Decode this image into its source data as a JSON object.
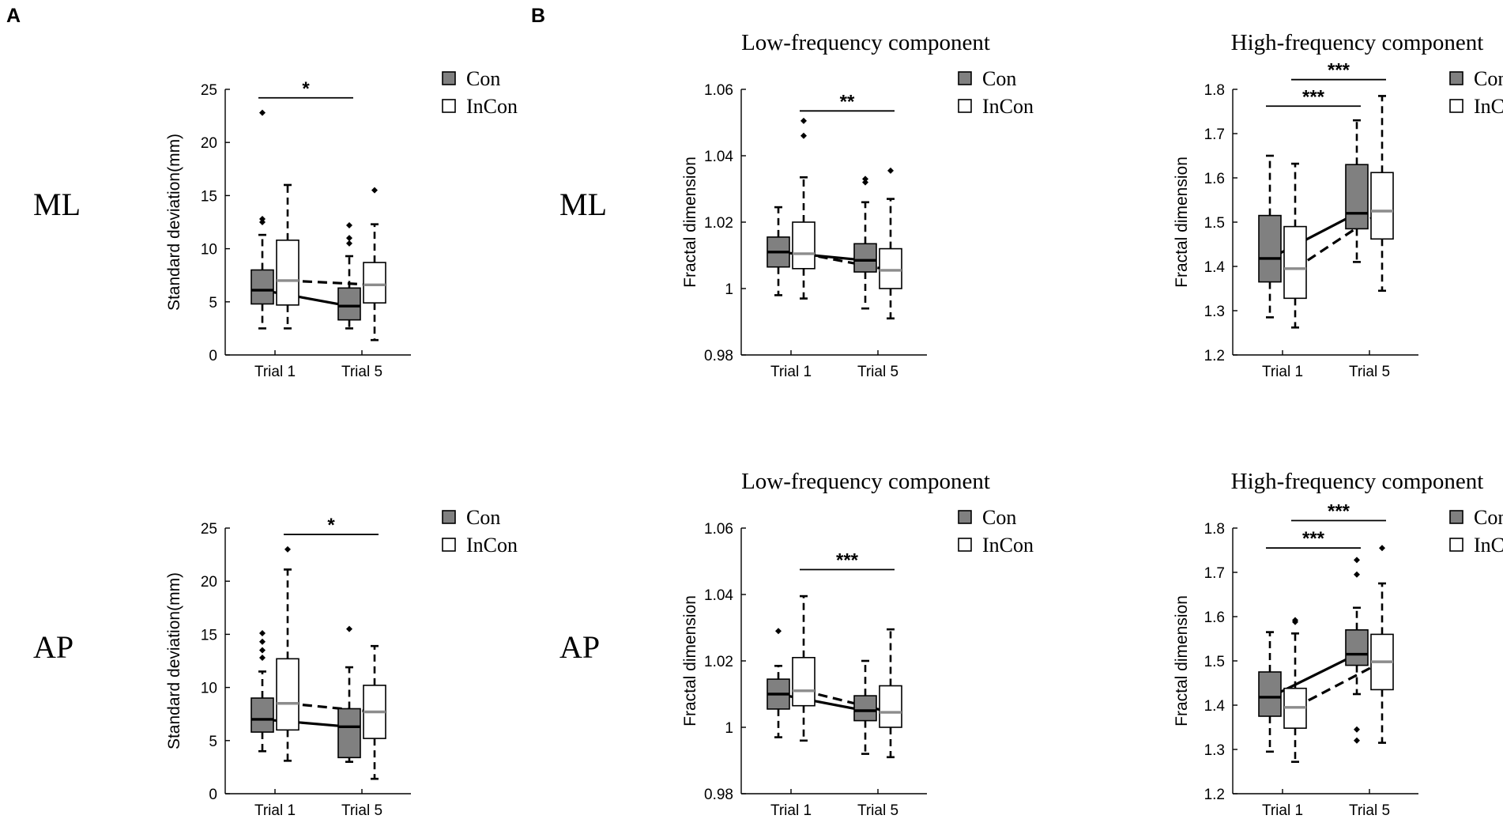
{
  "figure": {
    "panel_letters": [
      "A",
      "B"
    ],
    "row_labels": [
      "ML",
      "AP"
    ]
  },
  "colors": {
    "con_fill": "#808080",
    "incon_fill": "#ffffff",
    "box_stroke": "#000000",
    "median_con": "#000000",
    "median_incon": "#8c8c8c",
    "line_con": "#000000",
    "line_incon": "#000000"
  },
  "chart_data": [
    {
      "id": "sd-ml",
      "type": "box",
      "title": "",
      "row": "ML",
      "ylabel": "Standard deviation(mm)",
      "ylim": [
        0,
        25
      ],
      "yticks": [
        0,
        5,
        10,
        15,
        20,
        25
      ],
      "categories": [
        "Trial 1",
        "Trial 5"
      ],
      "legend": [
        "Con",
        "InCon"
      ],
      "legend_position": "right",
      "series": [
        {
          "name": "Con",
          "line_style": "solid",
          "boxes": [
            {
              "q1": 4.8,
              "median": 6.1,
              "q3": 8.0,
              "whisker_low": 2.5,
              "whisker_high": 11.3,
              "outliers": [
                12.5,
                12.8,
                22.8
              ]
            },
            {
              "q1": 3.3,
              "median": 4.6,
              "q3": 6.3,
              "whisker_low": 2.5,
              "whisker_high": 9.3,
              "outliers": [
                10.5,
                11.0,
                12.2
              ]
            }
          ]
        },
        {
          "name": "InCon",
          "line_style": "dashed",
          "boxes": [
            {
              "q1": 4.7,
              "median": 7.0,
              "q3": 10.8,
              "whisker_low": 2.5,
              "whisker_high": 16.0,
              "outliers": []
            },
            {
              "q1": 4.9,
              "median": 6.6,
              "q3": 8.7,
              "whisker_low": 1.4,
              "whisker_high": 12.3,
              "outliers": [
                15.5
              ]
            }
          ]
        }
      ],
      "significance": [
        {
          "label": "*",
          "from": "Trial 1 Con",
          "to": "Trial 5 Con",
          "y": 24.2
        }
      ]
    },
    {
      "id": "low-ml",
      "type": "box",
      "title": "Low-frequency component",
      "row": "ML",
      "ylabel": "Fractal dimension",
      "ylim": [
        0.98,
        1.06
      ],
      "yticks": [
        0.98,
        1,
        1.02,
        1.04,
        1.06
      ],
      "categories": [
        "Trial 1",
        "Trial 5"
      ],
      "legend": [
        "Con",
        "InCon"
      ],
      "legend_position": "right",
      "series": [
        {
          "name": "Con",
          "line_style": "solid",
          "boxes": [
            {
              "q1": 1.0065,
              "median": 1.011,
              "q3": 1.0155,
              "whisker_low": 0.998,
              "whisker_high": 1.0245,
              "outliers": []
            },
            {
              "q1": 1.005,
              "median": 1.0085,
              "q3": 1.0135,
              "whisker_low": 0.994,
              "whisker_high": 1.026,
              "outliers": [
                1.032,
                1.033
              ]
            }
          ]
        },
        {
          "name": "InCon",
          "line_style": "dashed",
          "boxes": [
            {
              "q1": 1.006,
              "median": 1.0105,
              "q3": 1.02,
              "whisker_low": 0.997,
              "whisker_high": 1.0335,
              "outliers": [
                1.046,
                1.0505
              ]
            },
            {
              "q1": 1.0,
              "median": 1.0055,
              "q3": 1.012,
              "whisker_low": 0.991,
              "whisker_high": 1.027,
              "outliers": [
                1.0355
              ]
            }
          ]
        }
      ],
      "significance": [
        {
          "label": "**",
          "from": "Trial 1 InCon",
          "to": "Trial 5 InCon",
          "y": 1.0535
        }
      ]
    },
    {
      "id": "high-ml",
      "type": "box",
      "title": "High-frequency component",
      "row": "ML",
      "ylabel": "Fractal dimension",
      "ylim": [
        1.2,
        1.8
      ],
      "yticks": [
        1.2,
        1.3,
        1.4,
        1.5,
        1.6,
        1.7,
        1.8
      ],
      "categories": [
        "Trial 1",
        "Trial 5"
      ],
      "legend": [
        "Con",
        "InCon"
      ],
      "legend_position": "right",
      "series": [
        {
          "name": "Con",
          "line_style": "solid",
          "boxes": [
            {
              "q1": 1.365,
              "median": 1.418,
              "q3": 1.515,
              "whisker_low": 1.285,
              "whisker_high": 1.65,
              "outliers": []
            },
            {
              "q1": 1.485,
              "median": 1.52,
              "q3": 1.63,
              "whisker_low": 1.41,
              "whisker_high": 1.73,
              "outliers": []
            }
          ]
        },
        {
          "name": "InCon",
          "line_style": "dashed",
          "boxes": [
            {
              "q1": 1.328,
              "median": 1.395,
              "q3": 1.49,
              "whisker_low": 1.262,
              "whisker_high": 1.632,
              "outliers": []
            },
            {
              "q1": 1.462,
              "median": 1.525,
              "q3": 1.612,
              "whisker_low": 1.345,
              "whisker_high": 1.785,
              "outliers": []
            }
          ]
        }
      ],
      "significance": [
        {
          "label": "***",
          "from": "Trial 1 Con",
          "to": "Trial 5 Con",
          "y": 1.762
        },
        {
          "label": "***",
          "from": "Trial 1 InCon",
          "to": "Trial 5 InCon",
          "y": 1.822
        }
      ]
    },
    {
      "id": "sd-ap",
      "type": "box",
      "title": "",
      "row": "AP",
      "ylabel": "Standard deviation(mm)",
      "ylim": [
        0,
        25
      ],
      "yticks": [
        0,
        5,
        10,
        15,
        20,
        25
      ],
      "categories": [
        "Trial 1",
        "Trial 5"
      ],
      "legend": [
        "Con",
        "InCon"
      ],
      "legend_position": "right",
      "series": [
        {
          "name": "Con",
          "line_style": "solid",
          "boxes": [
            {
              "q1": 5.8,
              "median": 7.0,
              "q3": 9.0,
              "whisker_low": 4.0,
              "whisker_high": 11.5,
              "outliers": [
                12.8,
                13.5,
                14.3,
                15.1
              ]
            },
            {
              "q1": 3.4,
              "median": 6.3,
              "q3": 8.0,
              "whisker_low": 3.0,
              "whisker_high": 11.9,
              "outliers": [
                15.5
              ]
            }
          ]
        },
        {
          "name": "InCon",
          "line_style": "dashed",
          "boxes": [
            {
              "q1": 6.0,
              "median": 8.5,
              "q3": 12.7,
              "whisker_low": 3.1,
              "whisker_high": 21.1,
              "outliers": [
                23.0
              ]
            },
            {
              "q1": 5.2,
              "median": 7.7,
              "q3": 10.2,
              "whisker_low": 1.4,
              "whisker_high": 13.9,
              "outliers": []
            }
          ]
        }
      ],
      "significance": [
        {
          "label": "*",
          "from": "Trial 1 InCon",
          "to": "Trial 5 InCon",
          "y": 24.4
        }
      ]
    },
    {
      "id": "low-ap",
      "type": "box",
      "title": "Low-frequency component",
      "row": "AP",
      "ylabel": "Fractal dimension",
      "ylim": [
        0.98,
        1.06
      ],
      "yticks": [
        0.98,
        1,
        1.02,
        1.04,
        1.06
      ],
      "categories": [
        "Trial 1",
        "Trial 5"
      ],
      "legend": [
        "Con",
        "InCon"
      ],
      "legend_position": "right",
      "series": [
        {
          "name": "Con",
          "line_style": "solid",
          "boxes": [
            {
              "q1": 1.0055,
              "median": 1.01,
              "q3": 1.0145,
              "whisker_low": 0.997,
              "whisker_high": 1.0185,
              "outliers": [
                1.029
              ]
            },
            {
              "q1": 1.002,
              "median": 1.005,
              "q3": 1.0095,
              "whisker_low": 0.992,
              "whisker_high": 1.02,
              "outliers": []
            }
          ]
        },
        {
          "name": "InCon",
          "line_style": "dashed",
          "boxes": [
            {
              "q1": 1.0065,
              "median": 1.011,
              "q3": 1.021,
              "whisker_low": 0.996,
              "whisker_high": 1.0395,
              "outliers": []
            },
            {
              "q1": 1.0,
              "median": 1.0045,
              "q3": 1.0125,
              "whisker_low": 0.991,
              "whisker_high": 1.0295,
              "outliers": []
            }
          ]
        }
      ],
      "significance": [
        {
          "label": "***",
          "from": "Trial 1 InCon",
          "to": "Trial 5 InCon",
          "y": 1.0475
        }
      ]
    },
    {
      "id": "high-ap",
      "type": "box",
      "title": "High-frequency component",
      "row": "AP",
      "ylabel": "Fractal dimension",
      "ylim": [
        1.2,
        1.8
      ],
      "yticks": [
        1.2,
        1.3,
        1.4,
        1.5,
        1.6,
        1.7,
        1.8
      ],
      "categories": [
        "Trial 1",
        "Trial 5"
      ],
      "legend": [
        "Con",
        "InCon"
      ],
      "legend_position": "right",
      "series": [
        {
          "name": "Con",
          "line_style": "solid",
          "boxes": [
            {
              "q1": 1.375,
              "median": 1.418,
              "q3": 1.475,
              "whisker_low": 1.295,
              "whisker_high": 1.565,
              "outliers": []
            },
            {
              "q1": 1.49,
              "median": 1.515,
              "q3": 1.57,
              "whisker_low": 1.425,
              "whisker_high": 1.62,
              "outliers": [
                1.32,
                1.345,
                1.695,
                1.728
              ]
            }
          ]
        },
        {
          "name": "InCon",
          "line_style": "dashed",
          "boxes": [
            {
              "q1": 1.348,
              "median": 1.395,
              "q3": 1.438,
              "whisker_low": 1.272,
              "whisker_high": 1.562,
              "outliers": [
                1.588,
                1.592
              ]
            },
            {
              "q1": 1.435,
              "median": 1.498,
              "q3": 1.56,
              "whisker_low": 1.315,
              "whisker_high": 1.675,
              "outliers": [
                1.755
              ]
            }
          ]
        }
      ],
      "significance": [
        {
          "label": "***",
          "from": "Trial 1 Con",
          "to": "Trial 5 Con",
          "y": 1.755
        },
        {
          "label": "***",
          "from": "Trial 1 InCon",
          "to": "Trial 5 InCon",
          "y": 1.817
        }
      ]
    }
  ]
}
